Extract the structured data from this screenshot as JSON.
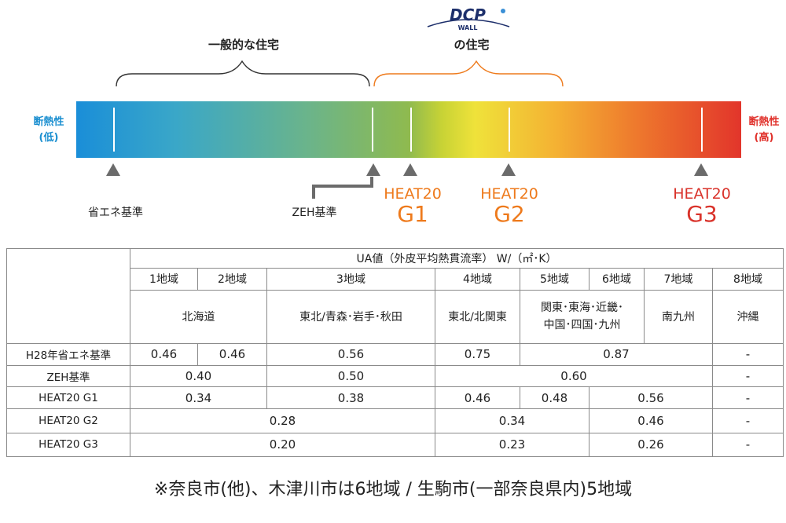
{
  "header": {
    "general_label": "一般的な住宅",
    "dcp_label": "の住宅",
    "logo_text": "DCP",
    "logo_sub": "WALL"
  },
  "bar": {
    "left_label_1": "断熱性",
    "left_label_2": "(低)",
    "right_label_1": "断熱性",
    "right_label_2": "(高)"
  },
  "markers": {
    "shoene": "省エネ基準",
    "zeh": "ZEH基準",
    "g1_top": "HEAT20",
    "g1_big": "G1",
    "g2_top": "HEAT20",
    "g2_big": "G2",
    "g3_top": "HEAT20",
    "g3_big": "G3"
  },
  "table": {
    "title": "UA値（外皮平均熱貫流率） W/（㎡･K）",
    "regions": [
      "1地域",
      "2地域",
      "3地域",
      "4地域",
      "5地域",
      "6地域",
      "7地域",
      "8地域"
    ],
    "areas": {
      "hokkaido": "北海道",
      "tohoku": "東北/青森･岩手･秋田",
      "kita_kanto": "東北/北関東",
      "kanto_line1": "関東･東海･近畿･",
      "kanto_line2": "中国･四国･九州",
      "minami_kyushu": "南九州",
      "okinawa": "沖縄"
    },
    "rows": [
      {
        "label": "H28年省エネ基準",
        "values": [
          "0.46",
          "0.46",
          "0.56",
          "0.75",
          "0.87",
          "-"
        ]
      },
      {
        "label": "ZEH基準",
        "values": [
          "0.40",
          "0.50",
          "0.60",
          "-"
        ]
      },
      {
        "label": "HEAT20 G1",
        "values": [
          "0.34",
          "0.38",
          "0.46",
          "0.48",
          "0.56",
          "-"
        ]
      },
      {
        "label": "HEAT20 G2",
        "values": [
          "0.28",
          "0.34",
          "0.46",
          "-"
        ]
      },
      {
        "label": "HEAT20 G3",
        "values": [
          "0.20",
          "0.23",
          "0.26",
          "-"
        ]
      }
    ]
  },
  "note": "※奈良市(他)、木津川市は6地域 / 生駒市(一部奈良県内)5地域",
  "colors": {
    "blue": "#1b8fd0",
    "red": "#e0302a",
    "orange": "#ee7a1c",
    "gray_marker": "#6b6b6b"
  }
}
